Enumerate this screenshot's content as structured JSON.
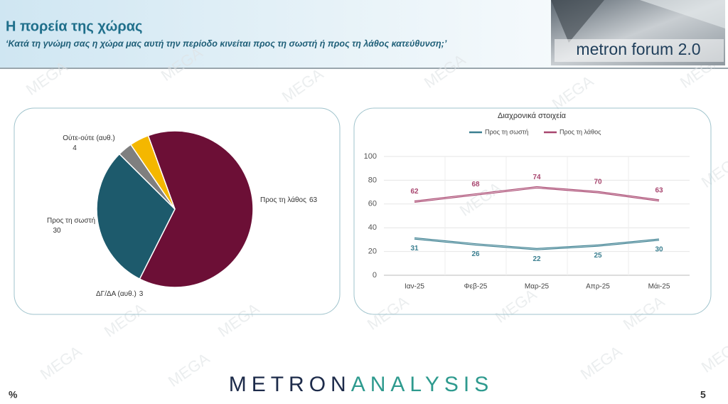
{
  "header": {
    "title": "Η πορεία της χώρας",
    "subtitle": "‘Κατά τη γνώμη σας η χώρα μας αυτή την περίοδο κινείται προς τη σωστή ή προς τη λάθος κατεύθυνση;’",
    "logo": "metron forum 2.0"
  },
  "watermark": "MEGA",
  "footer": {
    "brand_first": "METRON",
    "brand_second": "ANALYSIS",
    "percent": "%",
    "page": "5"
  },
  "chart_data": [
    {
      "type": "pie",
      "categories": [
        "Προς τη λάθος",
        "Προς τη σωστή",
        "ΔΓ/ΔΑ (αυθ.)",
        "Ούτε-ούτε (αυθ.)"
      ],
      "values": [
        63,
        30,
        3,
        4
      ],
      "colors": [
        "#6c0f36",
        "#1d5a6c",
        "#7f7f7f",
        "#f4b700"
      ]
    },
    {
      "type": "line",
      "title": "Διαχρονικά στοιχεία",
      "categories": [
        "Ιαν-25",
        "Φεβ-25",
        "Μαρ-25",
        "Απρ-25",
        "Μάι-25"
      ],
      "series": [
        {
          "name": "Προς τη σωστή",
          "color": "#3b7f90",
          "values": [
            31,
            26,
            22,
            25,
            30
          ]
        },
        {
          "name": "Προς τη λάθος",
          "color": "#a8466f",
          "values": [
            62,
            68,
            74,
            70,
            63
          ]
        }
      ],
      "ylim": [
        0,
        100
      ],
      "yticks": [
        0,
        20,
        40,
        60,
        80,
        100
      ],
      "grid": true
    }
  ]
}
